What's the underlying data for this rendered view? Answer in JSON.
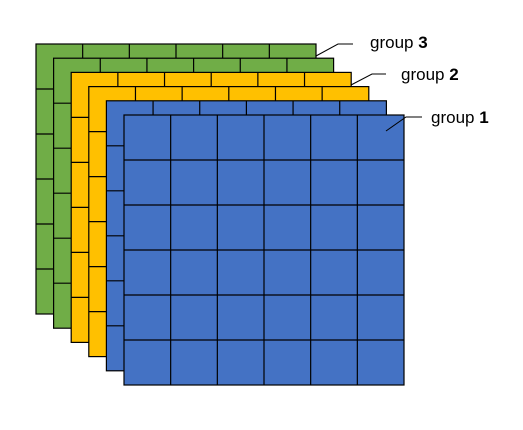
{
  "diagram": {
    "grid_rows": 6,
    "grid_cols": 6,
    "layers": [
      {
        "id": "group-3",
        "word": "group",
        "number": "3",
        "color": "#70AD47"
      },
      {
        "id": "group-3-b",
        "word": "",
        "number": "",
        "color": "#70AD47"
      },
      {
        "id": "group-2",
        "word": "group",
        "number": "2",
        "color": "#FFC000"
      },
      {
        "id": "group-2-b",
        "word": "",
        "number": "",
        "color": "#FFC000"
      },
      {
        "id": "group-1",
        "word": "",
        "number": "",
        "color": "#4472C4"
      },
      {
        "id": "group-1-front",
        "word": "group",
        "number": "1",
        "color": "#4472C4"
      }
    ]
  }
}
